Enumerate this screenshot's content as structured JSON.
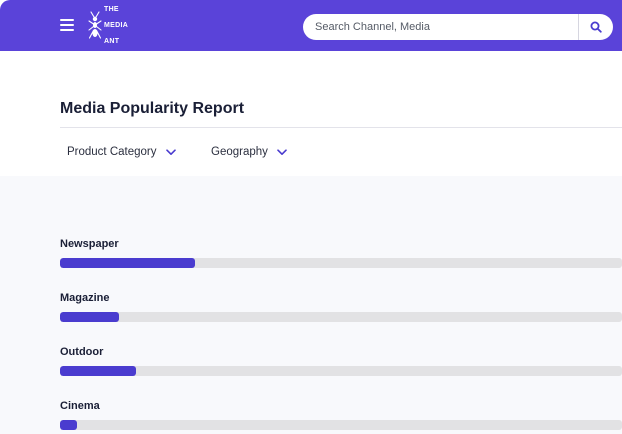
{
  "header": {
    "brand_lines": [
      "THE",
      "MEDIA",
      "ANT"
    ],
    "accent": "#5a43d9",
    "menu_icon": "hamburger-icon",
    "search": {
      "placeholder": "Search Channel, Media",
      "value": "",
      "icon": "search-icon"
    }
  },
  "report": {
    "title": "Media Popularity Report",
    "filters": [
      {
        "label": "Product Category",
        "icon": "chevron-down-icon"
      },
      {
        "label": "Geography",
        "icon": "chevron-down-icon"
      }
    ]
  },
  "media_items": [
    {
      "label": "Newspaper",
      "share": 0.24
    },
    {
      "label": "Magazine",
      "share": 0.105
    },
    {
      "label": "Outdoor",
      "share": 0.135
    },
    {
      "label": "Cinema",
      "share": 0.03
    }
  ],
  "colors": {
    "bar_fill": "#4a3ccf",
    "bar_track": "#e2e2e4",
    "content_bg": "#f8f9fc"
  }
}
